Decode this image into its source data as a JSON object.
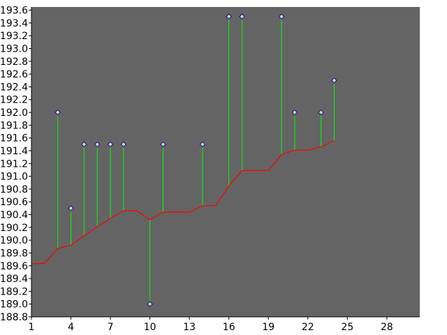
{
  "chart_data": {
    "type": "line",
    "title": "",
    "xlabel": "",
    "ylabel": "",
    "xlim": [
      1,
      30.5
    ],
    "ylim": [
      188.8,
      193.65
    ],
    "grid": false,
    "x_ticks": [
      1,
      4,
      7,
      10,
      13,
      16,
      19,
      22,
      25,
      28
    ],
    "y_ticks": [
      188.8,
      189.0,
      189.2,
      189.4,
      189.6,
      189.8,
      190.0,
      190.2,
      190.4,
      190.6,
      190.8,
      191.0,
      191.2,
      191.4,
      191.6,
      191.8,
      192.0,
      192.2,
      192.4,
      192.6,
      192.8,
      193.0,
      193.2,
      193.4,
      193.6
    ],
    "x_tick_labels": [
      "1",
      "4",
      "7",
      "10",
      "13",
      "16",
      "19",
      "22",
      "25",
      "28"
    ],
    "y_tick_labels": [
      "188.8",
      "189.0",
      "189.2",
      "189.4",
      "189.6",
      "189.8",
      "190.0",
      "190.2",
      "190.4",
      "190.6",
      "190.8",
      "191.0",
      "191.2",
      "191.4",
      "191.6",
      "191.8",
      "192.0",
      "192.2",
      "192.4",
      "192.6",
      "192.8",
      "193.0",
      "193.2",
      "193.4",
      "193.6"
    ],
    "series": [
      {
        "x": [
          1,
          2,
          3,
          4,
          5,
          6,
          7,
          8,
          9,
          10,
          11,
          12,
          13,
          14,
          15,
          16,
          17,
          18,
          19,
          20,
          21,
          22,
          23,
          24
        ],
        "values": [
          189.63,
          189.64,
          189.87,
          189.92,
          190.07,
          190.21,
          190.34,
          190.46,
          190.46,
          190.32,
          190.44,
          190.44,
          190.44,
          190.54,
          190.54,
          190.85,
          191.09,
          191.09,
          191.09,
          191.34,
          191.41,
          191.41,
          191.46,
          191.56
        ],
        "color": "#ff0000"
      },
      {
        "x": [
          3,
          4,
          5,
          6,
          7,
          8,
          10,
          11,
          14,
          16,
          17,
          20,
          21,
          23,
          24
        ],
        "values": [
          192.0,
          190.5,
          191.5,
          191.5,
          191.5,
          191.5,
          189.0,
          191.5,
          191.5,
          193.5,
          193.5,
          193.5,
          192.0,
          192.0,
          192.5
        ],
        "color": "#c8c8ff"
      }
    ],
    "residual_color": "#00ff00",
    "plot_background": "#646464"
  }
}
